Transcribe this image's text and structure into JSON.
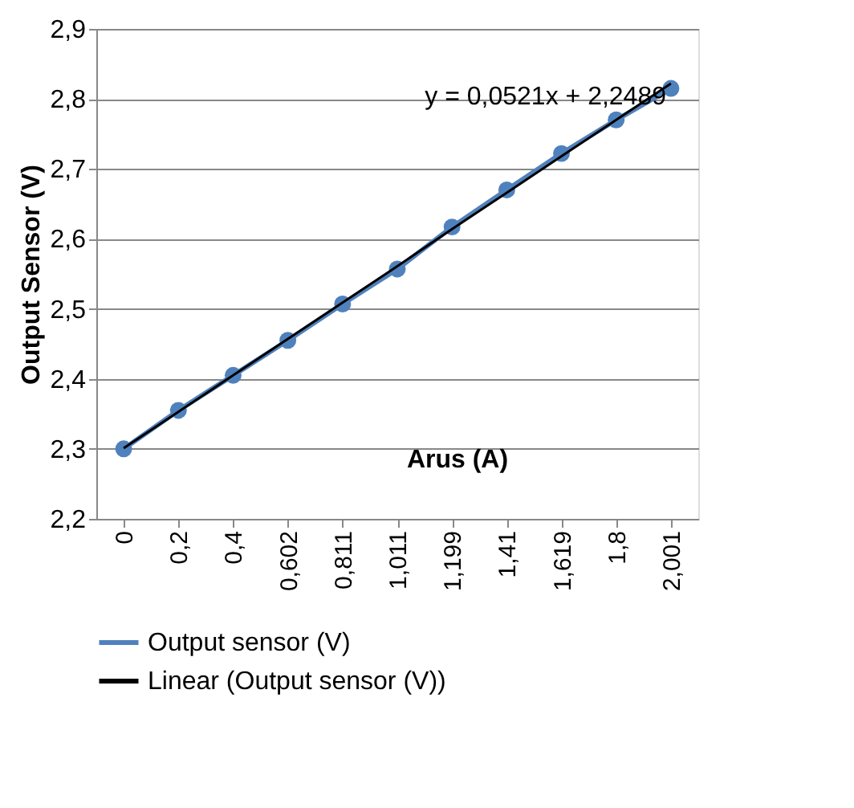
{
  "chart_data": {
    "type": "line",
    "xlabel": "Arus (A)",
    "ylabel": "Output Sensor (V)",
    "categories": [
      "0",
      "0,2",
      "0,4",
      "0,602",
      "0,811",
      "1,011",
      "1,199",
      "1,41",
      "1,619",
      "1,8",
      "2,001"
    ],
    "series": [
      {
        "name": "Output sensor (V)",
        "color": "#4f81bd",
        "marker": "circle",
        "values": [
          2.3,
          2.355,
          2.405,
          2.455,
          2.507,
          2.557,
          2.617,
          2.67,
          2.722,
          2.77,
          2.815
        ]
      },
      {
        "name": "Linear (Output sensor (V))",
        "color": "#000000",
        "marker": "none",
        "values": [
          2.301,
          2.353,
          2.405,
          2.457,
          2.509,
          2.561,
          2.614,
          2.666,
          2.718,
          2.77,
          2.822
        ]
      }
    ],
    "ylim": [
      2.2,
      2.9
    ],
    "yticks": [
      {
        "value": 2.2,
        "label": "2,2"
      },
      {
        "value": 2.3,
        "label": "2,3"
      },
      {
        "value": 2.4,
        "label": "2,4"
      },
      {
        "value": 2.5,
        "label": "2,5"
      },
      {
        "value": 2.6,
        "label": "2,6"
      },
      {
        "value": 2.7,
        "label": "2,7"
      },
      {
        "value": 2.8,
        "label": "2,8"
      },
      {
        "value": 2.9,
        "label": "2,9"
      }
    ],
    "grid": "y",
    "legend": "bottom",
    "line_style": "solid",
    "annotations": [
      "y = 0,0521x + 2,2489"
    ]
  }
}
